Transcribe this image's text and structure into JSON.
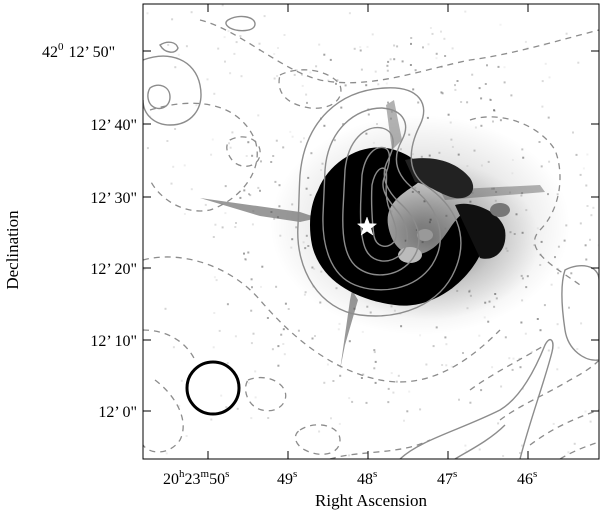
{
  "figure": {
    "x_axis_title": "Right Ascension",
    "y_axis_title": "Declination",
    "x_ticks": [
      {
        "h": "20",
        "h_unit": "h",
        "m": "23",
        "m_unit": "m",
        "s": "50",
        "s_unit": "s"
      },
      {
        "s": "49",
        "s_unit": "s"
      },
      {
        "s": "48",
        "s_unit": "s"
      },
      {
        "s": "47",
        "s_unit": "s"
      },
      {
        "s": "46",
        "s_unit": "s"
      }
    ],
    "y_ticks": [
      {
        "deg": "42",
        "deg_unit": "0",
        "text": "12’ 50\""
      },
      {
        "text": "12’ 40\""
      },
      {
        "text": "12’ 30\""
      },
      {
        "text": "12’ 20\""
      },
      {
        "text": "12’ 10\""
      },
      {
        "text": "12’ 0\""
      }
    ],
    "source_marker": "star",
    "beam_marker": "circle",
    "colors": {
      "solid_contour": "#8c8c8c",
      "dashed_contour": "#8c8c8c",
      "emission_core": "#000000",
      "star_fill": "#ffffff"
    }
  }
}
